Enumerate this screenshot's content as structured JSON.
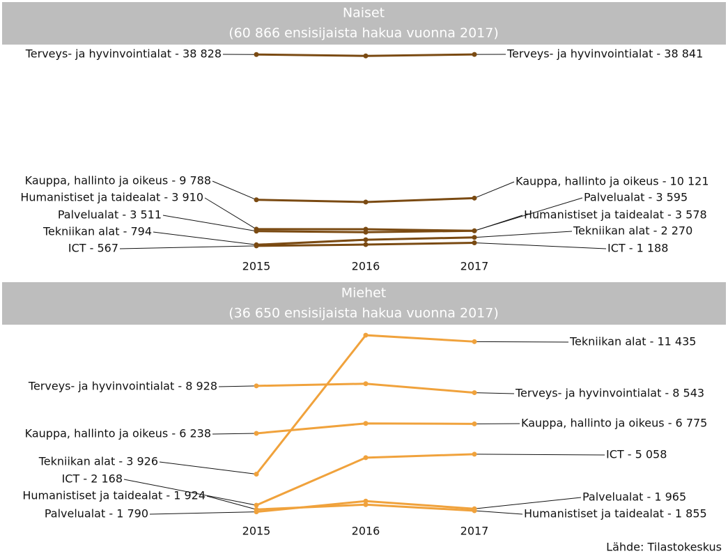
{
  "chart_data": [
    {
      "type": "line",
      "title": "Naiset",
      "subtitle": "(60 866 ensisijaista hakua vuonna 2017)",
      "categories": [
        "2015",
        "2016",
        "2017"
      ],
      "ylim": [
        0,
        39000
      ],
      "series": [
        {
          "color": "#7a4a12",
          "values": [
            38828,
            38550,
            38841
          ],
          "value_labels": [
            "Terveys- ja hyvinvointialat - 38 828",
            null,
            "Terveys- ja hyvinvointialat - 38 841"
          ]
        },
        {
          "color": "#7a4a12",
          "values": [
            9788,
            9330,
            10121
          ],
          "value_labels": [
            "Kauppa, hallinto ja oikeus - 9 788",
            null,
            "Kauppa, hallinto ja oikeus - 10 121"
          ]
        },
        {
          "color": "#7a4a12",
          "values": [
            3910,
            3900,
            3578
          ],
          "value_labels": [
            "Humanistiset ja taidealat - 3 910",
            null,
            "Humanistiset ja taidealat - 3 578"
          ]
        },
        {
          "color": "#7a4a12",
          "values": [
            3511,
            3300,
            3595
          ],
          "value_labels": [
            "Palvelualat - 3 511",
            null,
            "Palvelualat - 3 595"
          ]
        },
        {
          "color": "#7a4a12",
          "values": [
            794,
            1800,
            2270
          ],
          "value_labels": [
            "Tekniikan alat - 794",
            null,
            "Tekniikan alat - 2 270"
          ]
        },
        {
          "color": "#7a4a12",
          "values": [
            567,
            835,
            1188
          ],
          "value_labels": [
            "ICT - 567",
            null,
            "ICT - 1 188"
          ]
        }
      ]
    },
    {
      "type": "line",
      "title": "Miehet",
      "subtitle": "(36 650 ensisijaista hakua vuonna 2017)",
      "categories": [
        "2015",
        "2016",
        "2017"
      ],
      "ylim": [
        0,
        12000
      ],
      "series": [
        {
          "color": "#f0a23c",
          "values": [
            3926,
            11800,
            11435
          ],
          "value_labels": [
            "Tekniikan alat - 3 926",
            null,
            "Tekniikan alat - 11 435"
          ]
        },
        {
          "color": "#f0a23c",
          "values": [
            8928,
            9050,
            8543
          ],
          "value_labels": [
            "Terveys- ja hyvinvointialat - 8 928",
            null,
            "Terveys- ja hyvinvointialat - 8 543"
          ]
        },
        {
          "color": "#f0a23c",
          "values": [
            6238,
            6800,
            6775
          ],
          "value_labels": [
            "Kauppa, hallinto ja oikeus - 6 238",
            null,
            "Kauppa, hallinto ja oikeus - 6 775"
          ]
        },
        {
          "color": "#f0a23c",
          "values": [
            2168,
            4860,
            5058
          ],
          "value_labels": [
            "ICT - 2 168",
            null,
            "ICT - 5 058"
          ]
        },
        {
          "color": "#f0a23c",
          "values": [
            1790,
            2400,
            1965
          ],
          "value_labels": [
            "Palvelualat - 1 790",
            null,
            "Palvelualat - 1 965"
          ]
        },
        {
          "color": "#f0a23c",
          "values": [
            1924,
            2200,
            1855
          ],
          "value_labels": [
            "Humanistiset ja taidealat - 1 924",
            null,
            "Humanistiset ja taidealat - 1 855"
          ]
        }
      ]
    }
  ],
  "source": "Lähde: Tilastokeskus"
}
